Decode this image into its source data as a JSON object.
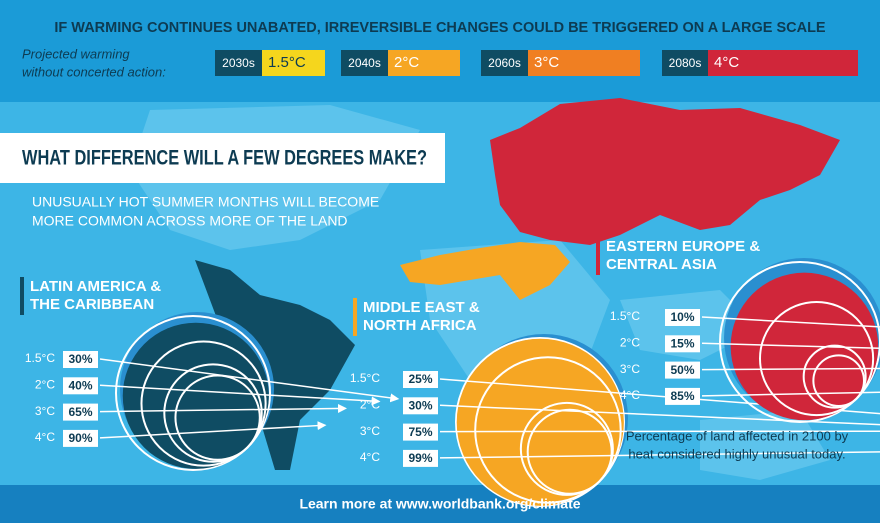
{
  "header": {
    "title": "IF WARMING CONTINUES UNABATED, IRREVERSIBLE CHANGES COULD BE TRIGGERED ON A LARGE SCALE",
    "projection_label": [
      "Projected warming",
      "without concerted action:"
    ],
    "timeline": [
      {
        "decade": "2030s",
        "warming": "1.5°C",
        "color": "#f5d61d"
      },
      {
        "decade": "2040s",
        "warming": "2°C",
        "color": "#f6a623"
      },
      {
        "decade": "2060s",
        "warming": "3°C",
        "color": "#f07f22"
      },
      {
        "decade": "2080s",
        "warming": "4°C",
        "color": "#d0263a"
      }
    ]
  },
  "banner": "WHAT DIFFERENCE WILL A FEW DEGREES MAKE?",
  "subtitle": [
    "UNUSUALLY HOT SUMMER MONTHS WILL BECOME",
    "MORE COMMON ACROSS MORE OF THE LAND"
  ],
  "regions": [
    {
      "name": [
        "LATIN AMERICA &",
        "THE CARIBBEAN"
      ],
      "color": "#0f4c63",
      "warming": [
        "1.5°C",
        "2°C",
        "3°C",
        "4°C"
      ],
      "values": [
        30,
        40,
        65,
        90
      ],
      "value_labels": [
        "30%",
        "40%",
        "65%",
        "90%"
      ]
    },
    {
      "name": [
        "MIDDLE EAST &",
        "NORTH AFRICA"
      ],
      "color": "#f6a623",
      "warming": [
        "1.5°C",
        "2°C",
        "3°C",
        "4°C"
      ],
      "values": [
        25,
        30,
        75,
        99
      ],
      "value_labels": [
        "25%",
        "30%",
        "75%",
        "99%"
      ]
    },
    {
      "name": [
        "EASTERN EUROPE &",
        "CENTRAL ASIA"
      ],
      "color": "#d0263a",
      "warming": [
        "1.5°C",
        "2°C",
        "3°C",
        "4°C"
      ],
      "values": [
        10,
        15,
        50,
        85
      ],
      "value_labels": [
        "10%",
        "15%",
        "50%",
        "85%"
      ]
    }
  ],
  "note": [
    "Percentage of land affected in 2100 by",
    "heat considered highly unusual today."
  ],
  "footer": "Learn more at www.worldbank.org/climate"
}
